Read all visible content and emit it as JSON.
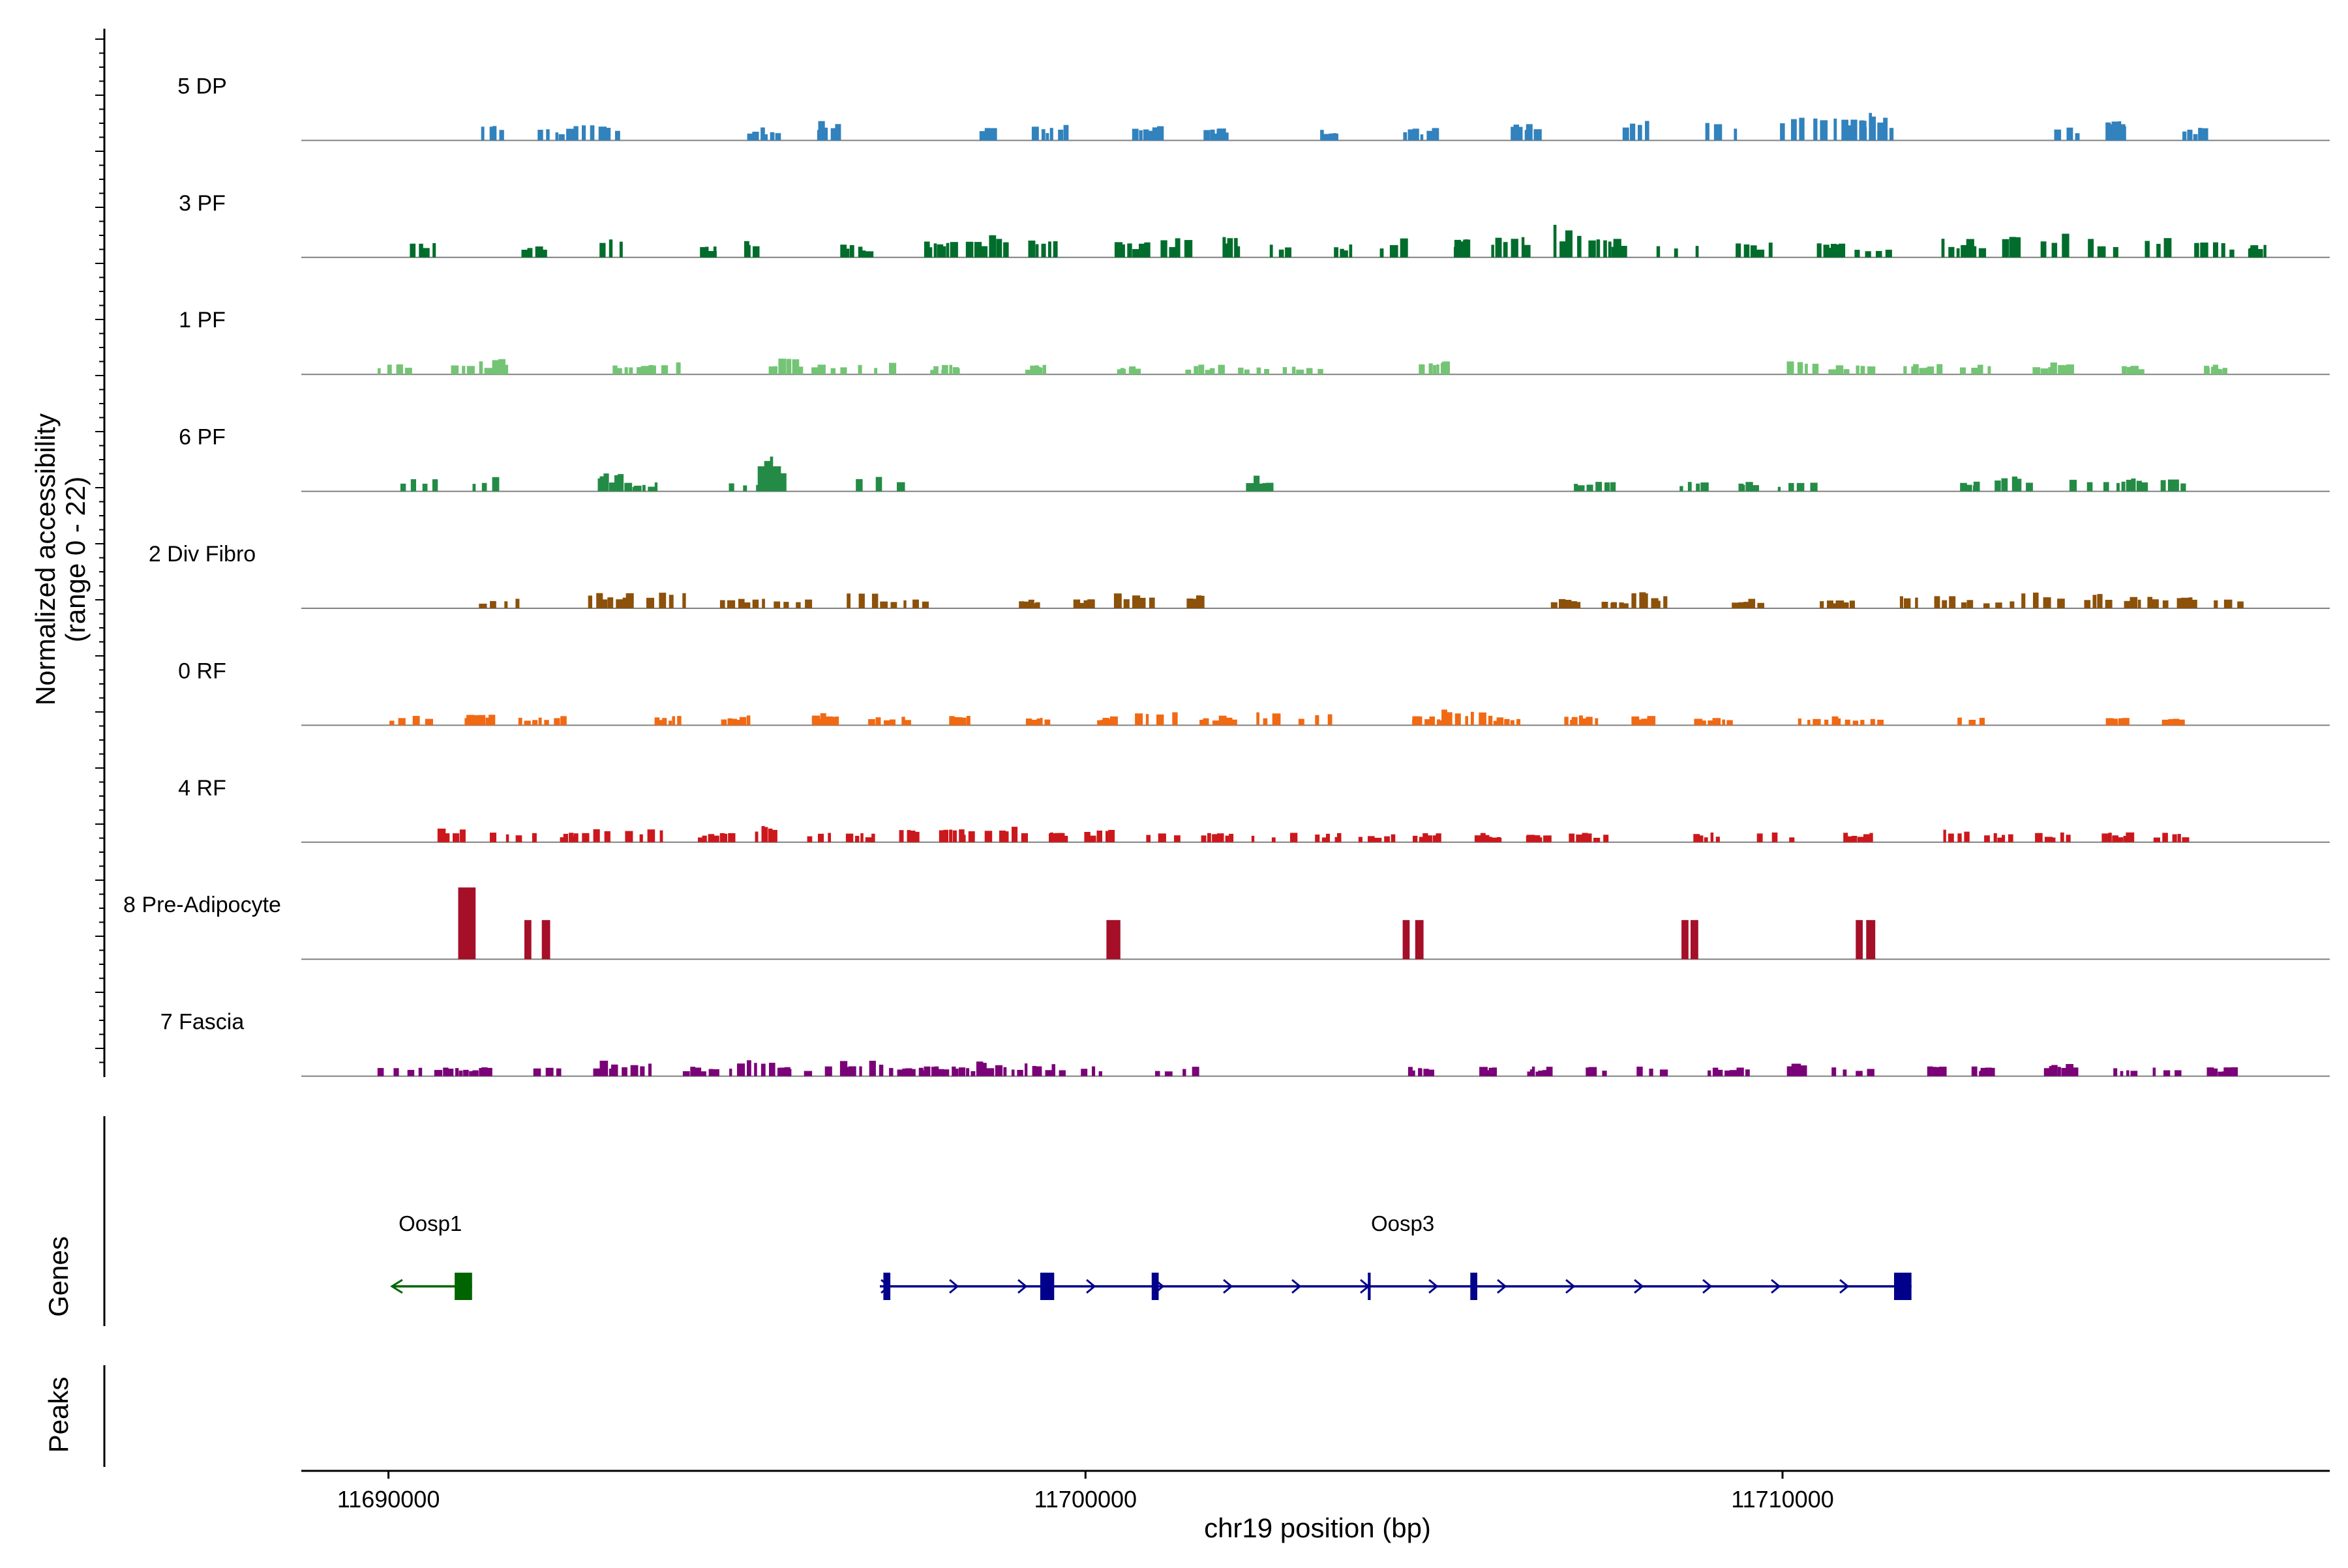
{
  "chart_data": {
    "type": "coverage",
    "ylabel_lines": [
      "Normalized accessibility",
      "(range 0 - 22)"
    ],
    "y_range": [
      0,
      22
    ],
    "xlabel": "chr19 position (bp)",
    "x_range": [
      11688750,
      11717850
    ],
    "x_ticks": [
      {
        "value": 11690000,
        "label": "11690000"
      },
      {
        "value": 11700000,
        "label": "11700000"
      },
      {
        "value": 11710000,
        "label": "11710000"
      }
    ],
    "tracks": [
      {
        "name": "5 DP",
        "color": "#3182bd",
        "seed": 11,
        "density": 0.42,
        "peaks": [
          [
            11691500,
            5
          ],
          [
            11692400,
            4
          ],
          [
            11693000,
            5
          ],
          [
            11695400,
            4
          ],
          [
            11696300,
            6
          ],
          [
            11698600,
            4
          ],
          [
            11699500,
            5
          ],
          [
            11700900,
            5
          ],
          [
            11701900,
            4
          ],
          [
            11703500,
            4
          ],
          [
            11704800,
            4
          ],
          [
            11706300,
            5
          ],
          [
            11707900,
            6
          ],
          [
            11709100,
            6
          ],
          [
            11710300,
            7
          ],
          [
            11711000,
            9
          ],
          [
            11711300,
            8
          ],
          [
            11714100,
            4
          ],
          [
            11714800,
            7
          ],
          [
            11715900,
            4
          ]
        ]
      },
      {
        "name": "3 PF",
        "color": "#006d2c",
        "seed": 23,
        "density": 0.7,
        "peaks": [
          [
            11690500,
            5
          ],
          [
            11692100,
            4
          ],
          [
            11693200,
            6
          ],
          [
            11694600,
            4
          ],
          [
            11695200,
            5
          ],
          [
            11696700,
            4
          ],
          [
            11697900,
            6
          ],
          [
            11698600,
            7
          ],
          [
            11699400,
            6
          ],
          [
            11700700,
            5
          ],
          [
            11701300,
            6
          ],
          [
            11702100,
            7
          ],
          [
            11702800,
            5
          ],
          [
            11703700,
            4
          ],
          [
            11704400,
            6
          ],
          [
            11705400,
            6
          ],
          [
            11706100,
            7
          ],
          [
            11706900,
            10
          ],
          [
            11707500,
            6
          ],
          [
            11708500,
            5
          ],
          [
            11709600,
            5
          ],
          [
            11710700,
            5
          ],
          [
            11711300,
            4
          ],
          [
            11712600,
            6
          ],
          [
            11713300,
            7
          ],
          [
            11713900,
            8
          ],
          [
            11714600,
            6
          ],
          [
            11715400,
            7
          ],
          [
            11716200,
            5
          ],
          [
            11716800,
            4
          ]
        ]
      },
      {
        "name": "1 PF",
        "color": "#74c476",
        "seed": 37,
        "density": 0.55,
        "peaks": [
          [
            11690100,
            4
          ],
          [
            11691200,
            4
          ],
          [
            11691600,
            5
          ],
          [
            11693500,
            3
          ],
          [
            11693900,
            4
          ],
          [
            11695700,
            5
          ],
          [
            11696300,
            3
          ],
          [
            11697000,
            4
          ],
          [
            11698000,
            3
          ],
          [
            11699300,
            3
          ],
          [
            11700600,
            3
          ],
          [
            11701700,
            3
          ],
          [
            11702400,
            3
          ],
          [
            11703100,
            3
          ],
          [
            11705000,
            4
          ],
          [
            11710300,
            4
          ],
          [
            11711000,
            3
          ],
          [
            11712000,
            4
          ],
          [
            11712800,
            3
          ],
          [
            11713900,
            4
          ],
          [
            11715000,
            3
          ],
          [
            11716200,
            3
          ]
        ]
      },
      {
        "name": "6 PF",
        "color": "#238b45",
        "seed": 49,
        "density": 0.6,
        "peaks": [
          [
            11690450,
            5
          ],
          [
            11691400,
            5
          ],
          [
            11693200,
            6
          ],
          [
            11693600,
            3
          ],
          [
            11695100,
            3
          ],
          [
            11695500,
            11
          ],
          [
            11697050,
            5
          ],
          [
            11702500,
            5
          ],
          [
            11707300,
            3
          ],
          [
            11708700,
            3
          ],
          [
            11709500,
            3
          ],
          [
            11710200,
            3
          ],
          [
            11712700,
            3
          ],
          [
            11713300,
            5
          ],
          [
            11714400,
            5
          ],
          [
            11715000,
            4
          ],
          [
            11715600,
            5
          ]
        ]
      },
      {
        "name": "2 Div Fibro",
        "color": "#8c510a",
        "seed": 61,
        "density": 0.62,
        "peaks": [
          [
            11691600,
            3
          ],
          [
            11693200,
            5
          ],
          [
            11694000,
            5
          ],
          [
            11695100,
            3
          ],
          [
            11695800,
            3
          ],
          [
            11696800,
            5
          ],
          [
            11697400,
            3
          ],
          [
            11699200,
            3
          ],
          [
            11700000,
            3
          ],
          [
            11700700,
            5
          ],
          [
            11701600,
            4
          ],
          [
            11706900,
            3
          ],
          [
            11707600,
            3
          ],
          [
            11708100,
            5
          ],
          [
            11709500,
            3
          ],
          [
            11710800,
            3
          ],
          [
            11711800,
            4
          ],
          [
            11712400,
            4
          ],
          [
            11713000,
            3
          ],
          [
            11713700,
            5
          ],
          [
            11714500,
            5
          ],
          [
            11715200,
            4
          ],
          [
            11715800,
            4
          ],
          [
            11716400,
            3
          ]
        ]
      },
      {
        "name": "0 RF",
        "color": "#f16913",
        "seed": 73,
        "density": 0.65,
        "peaks": [
          [
            11690300,
            3
          ],
          [
            11691300,
            4
          ],
          [
            11692200,
            3
          ],
          [
            11694000,
            3
          ],
          [
            11695000,
            3
          ],
          [
            11696300,
            4
          ],
          [
            11697200,
            3
          ],
          [
            11698200,
            3
          ],
          [
            11699300,
            3
          ],
          [
            11700300,
            3
          ],
          [
            11701000,
            4
          ],
          [
            11701900,
            3
          ],
          [
            11702600,
            4
          ],
          [
            11703300,
            4
          ],
          [
            11704900,
            3
          ],
          [
            11705400,
            5
          ],
          [
            11706000,
            3
          ],
          [
            11707100,
            3
          ],
          [
            11708000,
            3
          ],
          [
            11709000,
            3
          ],
          [
            11710500,
            3
          ],
          [
            11711100,
            3
          ],
          [
            11712700,
            3
          ],
          [
            11714800,
            3
          ],
          [
            11715600,
            3
          ]
        ]
      },
      {
        "name": "4 RF",
        "color": "#cb181d",
        "seed": 89,
        "density": 0.7,
        "peaks": [
          [
            11690900,
            5
          ],
          [
            11691800,
            3
          ],
          [
            11692600,
            3
          ],
          [
            11693000,
            6
          ],
          [
            11693700,
            4
          ],
          [
            11694700,
            3
          ],
          [
            11695400,
            5
          ],
          [
            11696200,
            3
          ],
          [
            11696800,
            3
          ],
          [
            11697500,
            4
          ],
          [
            11698100,
            4
          ],
          [
            11698600,
            4
          ],
          [
            11699000,
            5
          ],
          [
            11699600,
            3
          ],
          [
            11700200,
            4
          ],
          [
            11701100,
            3
          ],
          [
            11701900,
            3
          ],
          [
            11702700,
            3
          ],
          [
            11703500,
            3
          ],
          [
            11704200,
            3
          ],
          [
            11704900,
            3
          ],
          [
            11705800,
            3
          ],
          [
            11706500,
            3
          ],
          [
            11707200,
            3
          ],
          [
            11708900,
            3
          ],
          [
            11709900,
            3
          ],
          [
            11711100,
            3
          ],
          [
            11712500,
            4
          ],
          [
            11713100,
            3
          ],
          [
            11713900,
            3
          ],
          [
            11714800,
            3
          ],
          [
            11715600,
            3
          ]
        ]
      },
      {
        "name": "8 Pre-Adipocyte",
        "color": "#a50f28",
        "seed": 97,
        "density": 0.0,
        "peaks": [],
        "blocks": [
          [
            11691000,
            11691250,
            22
          ],
          [
            11691950,
            11692050,
            12
          ],
          [
            11692200,
            11692320,
            12
          ],
          [
            11700300,
            11700500,
            12
          ],
          [
            11704550,
            11704650,
            12
          ],
          [
            11704730,
            11704850,
            12
          ],
          [
            11708550,
            11708650,
            12
          ],
          [
            11708680,
            11708790,
            12
          ],
          [
            11711050,
            11711150,
            12
          ],
          [
            11711200,
            11711330,
            12
          ]
        ]
      },
      {
        "name": "7 Fascia",
        "color": "#7a0177",
        "seed": 107,
        "density": 0.62,
        "peaks": [
          [
            11690200,
            3
          ],
          [
            11690900,
            3
          ],
          [
            11691300,
            3
          ],
          [
            11692300,
            3
          ],
          [
            11693100,
            5
          ],
          [
            11693500,
            4
          ],
          [
            11694500,
            3
          ],
          [
            11695200,
            5
          ],
          [
            11695700,
            4
          ],
          [
            11696300,
            3
          ],
          [
            11696800,
            5
          ],
          [
            11697400,
            3
          ],
          [
            11697800,
            3
          ],
          [
            11698200,
            3
          ],
          [
            11698600,
            5
          ],
          [
            11699000,
            4
          ],
          [
            11699500,
            4
          ],
          [
            11700100,
            3
          ],
          [
            11701300,
            3
          ],
          [
            11704800,
            3
          ],
          [
            11705800,
            3
          ],
          [
            11706500,
            3
          ],
          [
            11707300,
            3
          ],
          [
            11708100,
            3
          ],
          [
            11709200,
            3
          ],
          [
            11710200,
            5
          ],
          [
            11711000,
            3
          ],
          [
            11712200,
            3
          ],
          [
            11712900,
            3
          ],
          [
            11714000,
            4
          ],
          [
            11714900,
            3
          ],
          [
            11715500,
            3
          ],
          [
            11716300,
            3
          ]
        ]
      }
    ],
    "genes": [
      {
        "name": "Oosp1",
        "strand": "-",
        "color": "#006400",
        "start": 11690050,
        "end": 11691200,
        "label_pos": 11690600,
        "exons": [
          [
            11690950,
            11691200
          ]
        ]
      },
      {
        "name": "Oosp3",
        "strand": "+",
        "color": "#00008b",
        "start": 11697050,
        "end": 11711850,
        "label_pos": 11704550,
        "exons": [
          [
            11697100,
            11697200
          ],
          [
            11699350,
            11699550
          ],
          [
            11700950,
            11701050
          ],
          [
            11704050,
            11704090
          ],
          [
            11705520,
            11705620
          ],
          [
            11711600,
            11711850
          ]
        ]
      }
    ],
    "genes_label": "Genes",
    "peaks_label": "Peaks"
  }
}
